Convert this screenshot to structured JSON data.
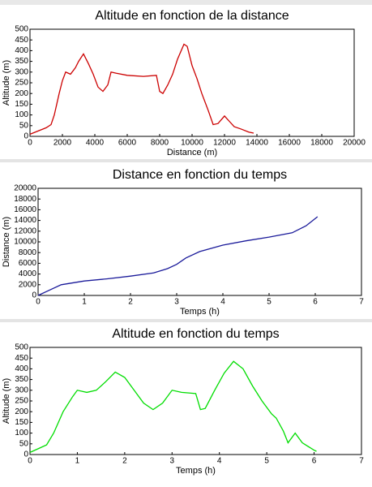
{
  "chart_data": [
    {
      "type": "line",
      "title": "Altitude en fonction de la distance",
      "xlabel": "Distance (m)",
      "ylabel": "Altitude (m)",
      "color": "#cc0000",
      "x": [
        0,
        500,
        1000,
        1300,
        1500,
        1800,
        2000,
        2200,
        2500,
        2800,
        3000,
        3300,
        3600,
        3900,
        4200,
        4500,
        4800,
        5000,
        5300,
        6000,
        7000,
        7800,
        8000,
        8200,
        8500,
        8800,
        9100,
        9500,
        9700,
        10000,
        10300,
        10600,
        11000,
        11300,
        11600,
        12000,
        12300,
        12600,
        13000,
        13500,
        13800
      ],
      "values": [
        10,
        25,
        40,
        55,
        100,
        200,
        260,
        300,
        290,
        320,
        350,
        385,
        340,
        290,
        230,
        210,
        240,
        300,
        295,
        285,
        280,
        285,
        210,
        200,
        240,
        290,
        360,
        430,
        420,
        330,
        270,
        200,
        120,
        55,
        60,
        95,
        70,
        45,
        35,
        20,
        15
      ],
      "xlim": [
        0,
        20000
      ],
      "xticks": [
        0,
        2000,
        4000,
        6000,
        8000,
        10000,
        12000,
        14000,
        16000,
        18000,
        20000
      ],
      "ylim": [
        0,
        500
      ],
      "yticks": [
        0,
        50,
        100,
        150,
        200,
        250,
        300,
        350,
        400,
        450,
        500
      ]
    },
    {
      "type": "line",
      "title": "Distance en fonction du temps",
      "xlabel": "Temps (h)",
      "ylabel": "Distance (m)",
      "color": "#1a1a9a",
      "x": [
        0,
        0.2,
        0.5,
        1,
        1.5,
        2,
        2.5,
        2.8,
        3,
        3.2,
        3.5,
        4,
        4.5,
        5,
        5.5,
        5.8,
        6.05
      ],
      "values": [
        0,
        800,
        2000,
        2700,
        3100,
        3600,
        4200,
        5000,
        5800,
        7000,
        8200,
        9400,
        10200,
        10900,
        11700,
        13000,
        14700
      ],
      "xlim": [
        0,
        7
      ],
      "xticks": [
        0,
        1,
        2,
        3,
        4,
        5,
        6,
        7
      ],
      "ylim": [
        0,
        20000
      ],
      "yticks": [
        0,
        2000,
        4000,
        6000,
        8000,
        10000,
        12000,
        14000,
        16000,
        18000,
        20000
      ]
    },
    {
      "type": "line",
      "title": "Altitude en fonction du temps",
      "xlabel": "Temps (h)",
      "ylabel": "Altitude (m)",
      "color": "#00dd00",
      "x": [
        0,
        0.2,
        0.35,
        0.5,
        0.7,
        0.9,
        1,
        1.2,
        1.4,
        1.6,
        1.8,
        2,
        2.2,
        2.4,
        2.6,
        2.8,
        3,
        3.2,
        3.5,
        3.6,
        3.7,
        3.9,
        4.1,
        4.3,
        4.5,
        4.7,
        4.9,
        5.1,
        5.2,
        5.35,
        5.45,
        5.6,
        5.75,
        6,
        6.05
      ],
      "values": [
        10,
        30,
        45,
        100,
        200,
        270,
        300,
        290,
        300,
        340,
        385,
        360,
        300,
        240,
        210,
        240,
        300,
        290,
        285,
        210,
        215,
        300,
        380,
        435,
        400,
        320,
        250,
        190,
        170,
        110,
        55,
        100,
        55,
        20,
        15
      ],
      "xlim": [
        0,
        7
      ],
      "xticks": [
        0,
        1,
        2,
        3,
        4,
        5,
        6,
        7
      ],
      "ylim": [
        0,
        500
      ],
      "yticks": [
        0,
        50,
        100,
        150,
        200,
        250,
        300,
        350,
        400,
        450,
        500
      ]
    }
  ]
}
